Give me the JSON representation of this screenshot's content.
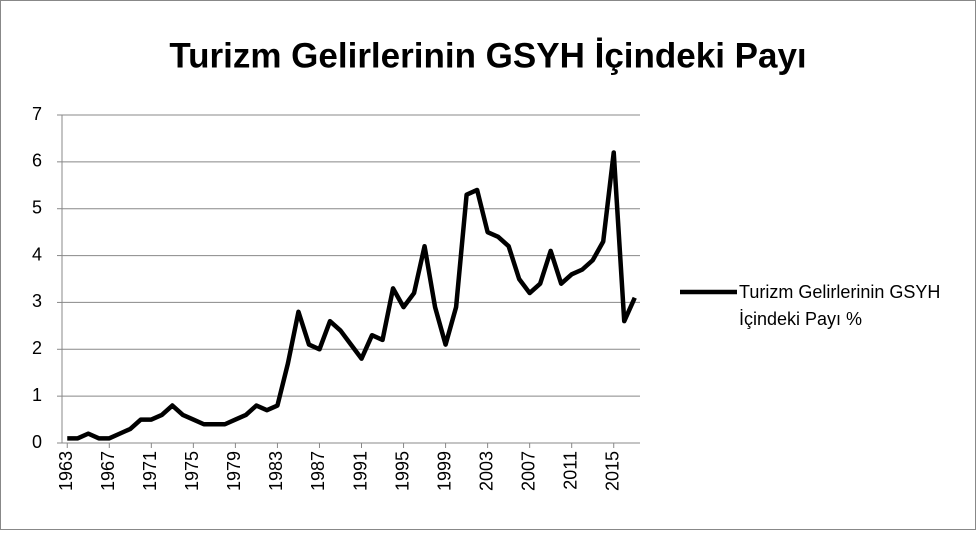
{
  "chart_data": {
    "type": "line",
    "title": "Turizm Gelirlerinin GSYH İçindeki Payı",
    "x": [
      1963,
      1964,
      1965,
      1966,
      1967,
      1968,
      1969,
      1970,
      1971,
      1972,
      1973,
      1974,
      1975,
      1976,
      1977,
      1978,
      1979,
      1980,
      1981,
      1982,
      1983,
      1984,
      1985,
      1986,
      1987,
      1988,
      1989,
      1990,
      1991,
      1992,
      1993,
      1994,
      1995,
      1996,
      1997,
      1998,
      1999,
      2000,
      2001,
      2002,
      2003,
      2004,
      2005,
      2006,
      2007,
      2008,
      2009,
      2010,
      2011,
      2012,
      2013,
      2014,
      2015,
      2016,
      2017
    ],
    "series": [
      {
        "name": "Turizm Gelirlerinin GSYH İçindeki Payı %",
        "color": "#000000",
        "values": [
          0.1,
          0.1,
          0.2,
          0.1,
          0.1,
          0.2,
          0.3,
          0.5,
          0.5,
          0.6,
          0.8,
          0.6,
          0.5,
          0.4,
          0.4,
          0.4,
          0.5,
          0.6,
          0.8,
          0.7,
          0.8,
          1.7,
          2.8,
          2.1,
          2.0,
          2.6,
          2.4,
          2.1,
          1.8,
          2.3,
          2.2,
          3.3,
          2.9,
          3.2,
          4.2,
          2.9,
          2.1,
          2.9,
          5.3,
          5.4,
          4.5,
          4.4,
          4.2,
          3.5,
          3.2,
          3.4,
          4.1,
          3.4,
          3.6,
          3.7,
          3.9,
          4.3,
          6.2,
          2.6,
          3.1
        ]
      }
    ],
    "xlim": [
      1962.5,
      2017.5
    ],
    "xticks": [
      1963,
      1967,
      1971,
      1975,
      1979,
      1983,
      1987,
      1991,
      1995,
      1999,
      2003,
      2007,
      2011,
      2015
    ],
    "ylim": [
      0,
      7
    ],
    "yticks": [
      0,
      1,
      2,
      3,
      4,
      5,
      6,
      7
    ],
    "grid": true,
    "legend": "right"
  }
}
